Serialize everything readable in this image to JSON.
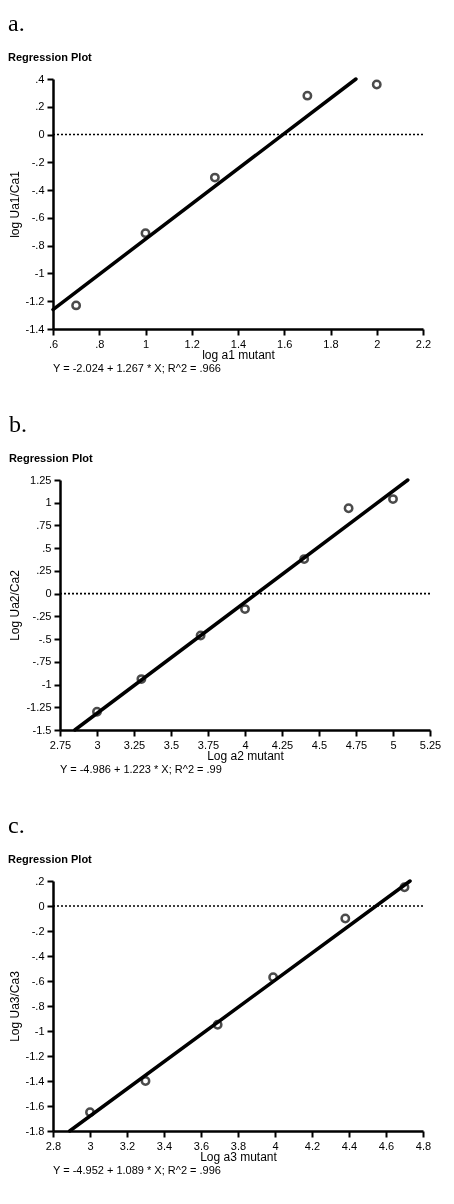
{
  "chart_data": [
    {
      "type": "scatter",
      "title": "a.",
      "subtitle": "Regression Plot",
      "xlabel": "log a1 mutant",
      "ylabel": "log Ua1/Ca1",
      "marker": "circle",
      "xlim": [
        0.6,
        2.2
      ],
      "ylim": [
        -1.4,
        0.4
      ],
      "xticks": [
        {
          "value": 0.6,
          "label": ".6"
        },
        {
          "value": 0.8,
          "label": ".8"
        },
        1,
        1.2,
        1.4,
        1.6,
        1.8,
        2,
        2.2
      ],
      "yticks": [
        {
          "value": 0.4,
          "label": ".4"
        },
        {
          "value": 0.2,
          "label": ".2"
        },
        0,
        {
          "value": -0.2,
          "label": "-.2"
        },
        {
          "value": -0.4,
          "label": "-.4"
        },
        {
          "value": -0.6,
          "label": "-.6"
        },
        {
          "value": -0.8,
          "label": "-.8"
        },
        -1,
        -1.2,
        -1.4
      ],
      "series": [
        {
          "type": "scatter",
          "color": "#000000",
          "x": [
            0.7,
            1.0,
            1.3,
            1.7,
            2.0
          ],
          "values": [
            -1.23,
            -0.71,
            -0.31,
            0.28,
            0.36
          ]
        },
        {
          "type": "line",
          "color": "#000000",
          "marker": "none",
          "x": [
            0.6,
            1.91
          ],
          "values": [
            -1.26,
            0.4
          ]
        }
      ],
      "ref_lines": [
        {
          "axis": "y",
          "value": 0,
          "line_style": "dotted",
          "color": "#000000"
        }
      ],
      "annotations": [
        "Y = -2.024 + 1.267 * X; R^2 = .966"
      ]
    },
    {
      "type": "scatter",
      "title": "b.",
      "subtitle": "Regression Plot",
      "xlabel": "Log a2 mutant",
      "ylabel": "Log Ua2/Ca2",
      "marker": "circle",
      "xlim": [
        2.75,
        5.25
      ],
      "ylim": [
        -1.5,
        1.25
      ],
      "xticks": [
        2.75,
        3,
        3.25,
        3.5,
        3.75,
        4,
        4.25,
        4.5,
        4.75,
        5,
        5.25
      ],
      "yticks": [
        1.25,
        1,
        {
          "value": 0.75,
          "label": ".75"
        },
        {
          "value": 0.5,
          "label": ".5"
        },
        {
          "value": 0.25,
          "label": ".25"
        },
        0,
        {
          "value": -0.25,
          "label": "-.25"
        },
        {
          "value": -0.5,
          "label": "-.5"
        },
        {
          "value": -0.75,
          "label": "-.75"
        },
        -1,
        -1.25,
        -1.5
      ],
      "series": [
        {
          "type": "scatter",
          "color": "#000000",
          "x": [
            3.0,
            3.3,
            3.7,
            4.0,
            4.4,
            4.7,
            5.0
          ],
          "values": [
            -1.3,
            -0.94,
            -0.46,
            -0.17,
            0.38,
            0.94,
            1.04
          ]
        },
        {
          "type": "line",
          "color": "#000000",
          "marker": "none",
          "x": [
            2.85,
            5.1
          ],
          "values": [
            -1.5,
            1.25
          ]
        }
      ],
      "ref_lines": [
        {
          "axis": "y",
          "value": 0,
          "line_style": "dotted",
          "color": "#000000"
        }
      ],
      "annotations": [
        "Y = -4.986 + 1.223 * X; R^2 = .99"
      ]
    },
    {
      "type": "scatter",
      "title": "c.",
      "subtitle": "Regression Plot",
      "xlabel": "Log a3 mutant",
      "ylabel": "Log Ua3/Ca3",
      "marker": "circle",
      "xlim": [
        2.8,
        4.8
      ],
      "ylim": [
        -1.8,
        0.2
      ],
      "xticks": [
        2.8,
        3,
        3.2,
        3.4,
        3.6,
        3.8,
        4,
        4.2,
        4.4,
        4.6,
        4.8
      ],
      "yticks": [
        {
          "value": 0.2,
          "label": ".2"
        },
        0,
        {
          "value": -0.2,
          "label": "-.2"
        },
        {
          "value": -0.4,
          "label": "-.4"
        },
        {
          "value": -0.6,
          "label": "-.6"
        },
        {
          "value": -0.8,
          "label": "-.8"
        },
        -1,
        -1.2,
        -1.4,
        -1.6,
        -1.8
      ],
      "series": [
        {
          "type": "scatter",
          "color": "#000000",
          "x": [
            3.0,
            3.3,
            3.69,
            3.99,
            4.38,
            4.7
          ],
          "values": [
            -1.65,
            -1.4,
            -0.95,
            -0.57,
            -0.1,
            0.15
          ]
        },
        {
          "type": "line",
          "color": "#000000",
          "marker": "none",
          "x": [
            2.89,
            4.73
          ],
          "values": [
            -1.8,
            0.2
          ]
        }
      ],
      "ref_lines": [
        {
          "axis": "y",
          "value": 0,
          "line_style": "dotted",
          "color": "#000000"
        }
      ],
      "annotations": [
        "Y = -4.952 + 1.089 * X; R^2 = .996"
      ]
    }
  ]
}
